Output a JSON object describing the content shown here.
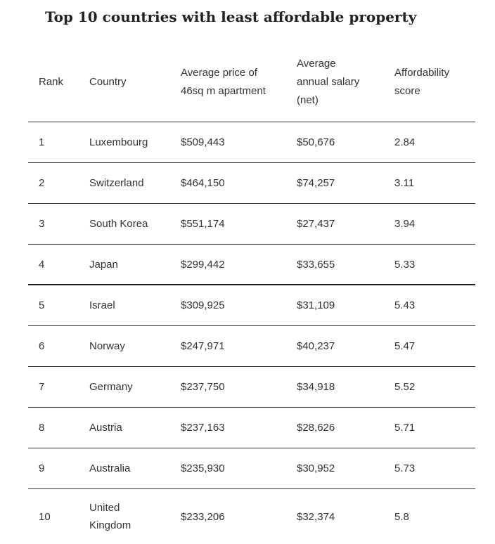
{
  "title": "Top 10 countries with least affordable property",
  "table": {
    "headers": {
      "rank": "Rank",
      "country": "Country",
      "price_line1": "Average price of",
      "price_line2": "46sq m apartment",
      "salary_line1": "Average",
      "salary_line2": "annual salary",
      "salary_line3": "(net)",
      "score_line1": "Affordability",
      "score_line2": "score"
    },
    "rows": [
      {
        "rank": "1",
        "country": "Luxembourg",
        "price": "$509,443",
        "salary": "$50,676",
        "score": "2.84"
      },
      {
        "rank": "2",
        "country": "Switzerland",
        "price": "$464,150",
        "salary": "$74,257",
        "score": "3.11"
      },
      {
        "rank": "3",
        "country": "South Korea",
        "price": "$551,174",
        "salary": "$27,437",
        "score": "3.94"
      },
      {
        "rank": "4",
        "country": "Japan",
        "price": "$299,442",
        "salary": "$33,655",
        "score": "5.33"
      },
      {
        "rank": "5",
        "country": "Israel",
        "price": "$309,925",
        "salary": "$31,109",
        "score": "5.43"
      },
      {
        "rank": "6",
        "country": "Norway",
        "price": "$247,971",
        "salary": "$40,237",
        "score": "5.47"
      },
      {
        "rank": "7",
        "country": "Germany",
        "price": "$237,750",
        "salary": "$34,918",
        "score": "5.52"
      },
      {
        "rank": "8",
        "country": "Austria",
        "price": "$237,163",
        "salary": "$28,626",
        "score": "5.71"
      },
      {
        "rank": "9",
        "country": "Australia",
        "price": "$235,930",
        "salary": "$30,952",
        "score": "5.73"
      },
      {
        "rank": "10",
        "country_line1": "United",
        "country_line2": "Kingdom",
        "price": "$233,206",
        "salary": "$32,374",
        "score": "5.8"
      }
    ]
  }
}
